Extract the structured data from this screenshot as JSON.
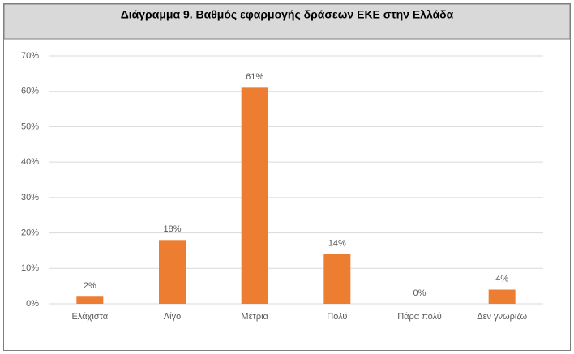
{
  "chart_data": {
    "type": "bar",
    "title": "Διάγραμμα 9. Βαθμός εφαρμογής δράσεων ΕΚΕ στην Ελλάδα",
    "categories": [
      "Ελάχιστα",
      "Λίγο",
      "Μέτρια",
      "Πολύ",
      "Πάρα πολύ",
      "Δεν γνωρίζω"
    ],
    "values": [
      2,
      18,
      61,
      14,
      0,
      4
    ],
    "value_labels": [
      "2%",
      "18%",
      "61%",
      "14%",
      "0%",
      "4%"
    ],
    "color": "#ed7d31",
    "ylim": [
      0,
      70
    ],
    "yticks": [
      {
        "value": 0,
        "label": "0%"
      },
      {
        "value": 10,
        "label": "10%"
      },
      {
        "value": 20,
        "label": "20%"
      },
      {
        "value": 30,
        "label": "30%"
      },
      {
        "value": 40,
        "label": "40%"
      },
      {
        "value": 50,
        "label": "50%"
      },
      {
        "value": 60,
        "label": "60%"
      },
      {
        "value": 70,
        "label": "70%"
      }
    ],
    "grid": true
  }
}
